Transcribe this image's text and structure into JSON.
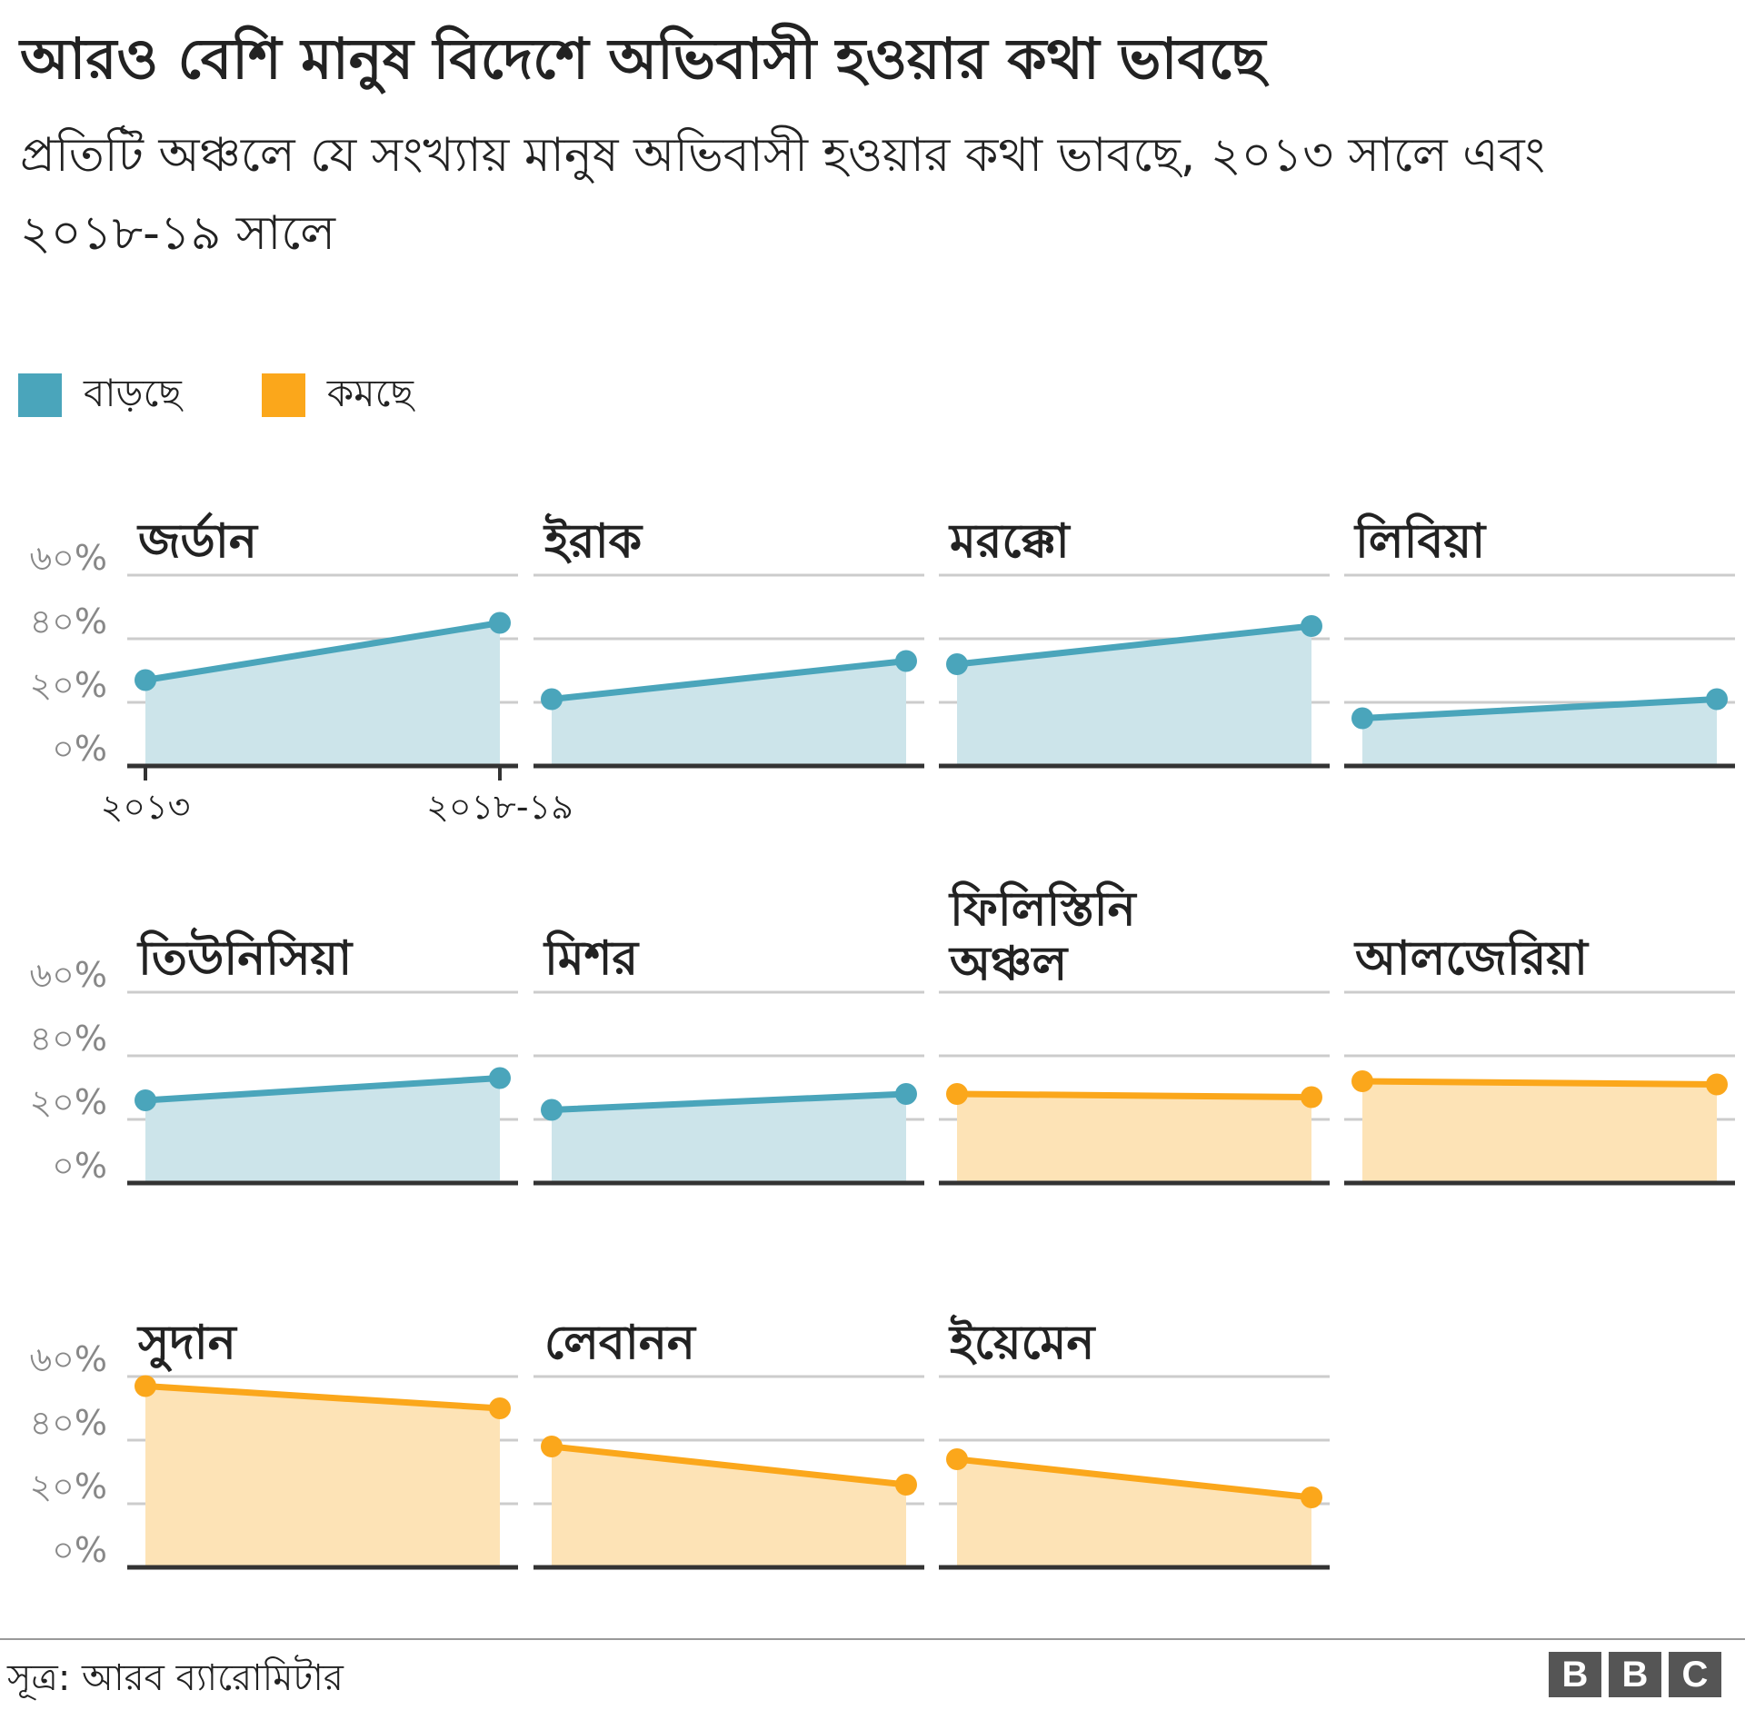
{
  "title": "আরও বেশি মানুষ বিদেশে অভিবাসী হওয়ার কথা ভাবছে",
  "subtitle": "প্রতিটি অঞ্চলে যে সংখ্যায় মানুষ অভিবাসী হওয়ার কথা ভাবছে, ২০১৩ সালে এবং ২০১৮-১৯ সালে",
  "legend": [
    {
      "label": "বাড়ছে",
      "color": "#4aa5bb"
    },
    {
      "label": "কমছে",
      "color": "#fba71b"
    }
  ],
  "colors": {
    "increase_line": "#4aa5bb",
    "increase_fill": "#cce4ea",
    "decrease_line": "#fba71b",
    "decrease_fill": "#fde3b6",
    "grid": "#cccccc",
    "axis": "#333333",
    "tick_text": "#888888"
  },
  "source": "সূত্র: আরব ব্যারোমিটার",
  "logo": [
    "B",
    "B",
    "C"
  ],
  "chart_data": {
    "type": "area",
    "y_ticks": [
      "০%",
      "২০%",
      "৪০%",
      "৬০%"
    ],
    "ylim": [
      0,
      60
    ],
    "x_ticks": [
      "২০১৩",
      "২০১৮-১৯"
    ],
    "panels": [
      {
        "name": "জর্ডান",
        "trend": "increase",
        "values": [
          27,
          45
        ]
      },
      {
        "name": "ইরাক",
        "trend": "increase",
        "values": [
          21,
          33
        ]
      },
      {
        "name": "মরক্কো",
        "trend": "increase",
        "values": [
          32,
          44
        ]
      },
      {
        "name": "লিবিয়া",
        "trend": "increase",
        "values": [
          15,
          21
        ]
      },
      {
        "name": "তিউনিসিয়া",
        "trend": "increase",
        "values": [
          26,
          33
        ]
      },
      {
        "name": "মিশর",
        "trend": "increase",
        "values": [
          23,
          28
        ]
      },
      {
        "name": "ফিলিস্তিনি অঞ্চল",
        "trend": "decrease",
        "values": [
          28,
          27
        ]
      },
      {
        "name": "আলজেরিয়া",
        "trend": "decrease",
        "values": [
          32,
          31
        ]
      },
      {
        "name": "সুদান",
        "trend": "decrease",
        "values": [
          57,
          50
        ]
      },
      {
        "name": "লেবানন",
        "trend": "decrease",
        "values": [
          38,
          26
        ]
      },
      {
        "name": "ইয়েমেন",
        "trend": "decrease",
        "values": [
          34,
          22
        ]
      }
    ]
  }
}
